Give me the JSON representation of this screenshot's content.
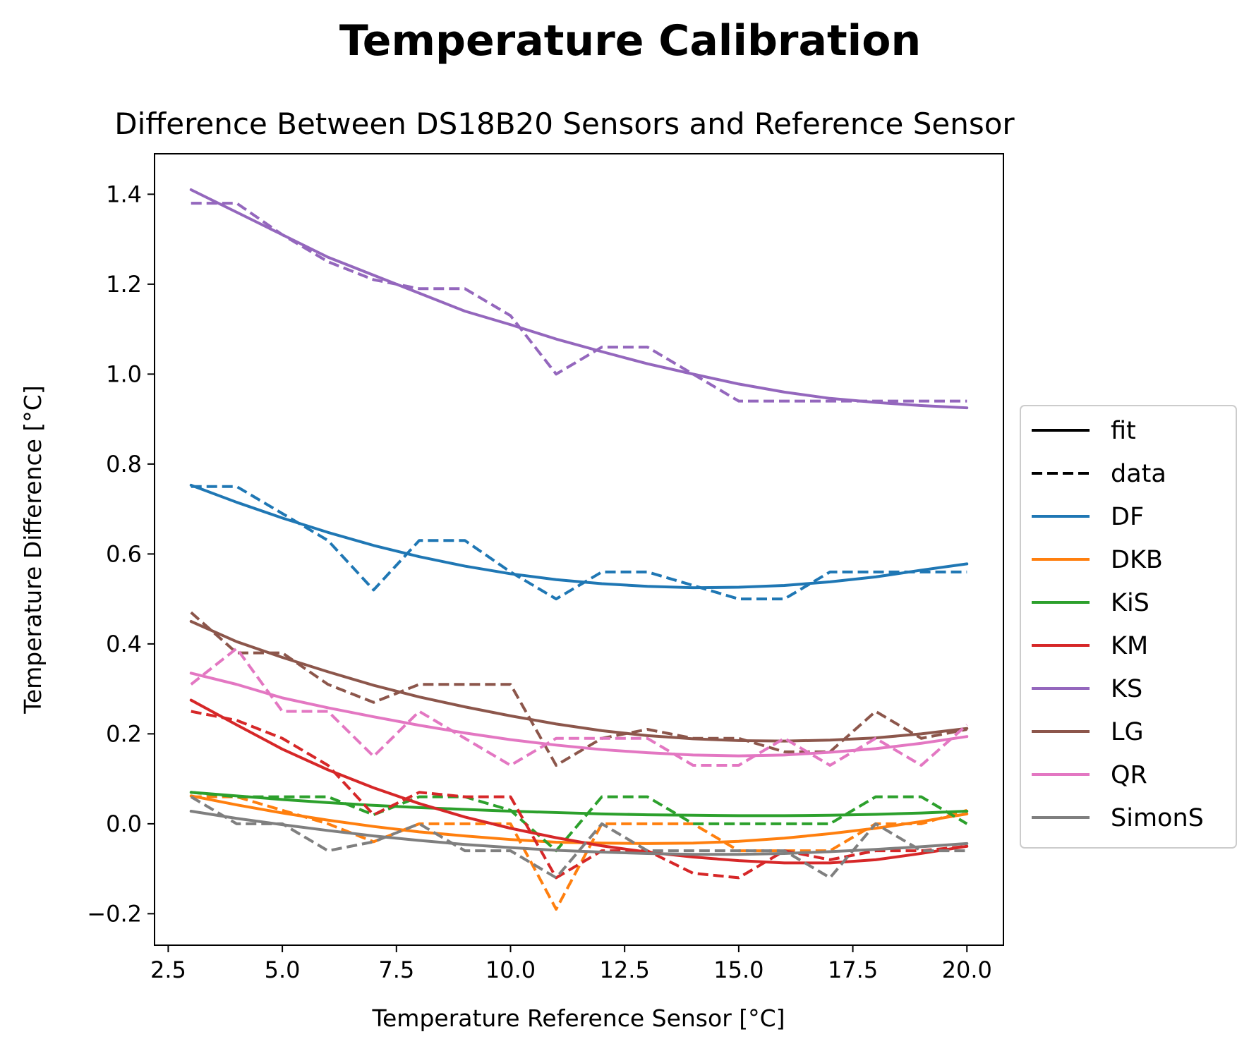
{
  "chart_data": {
    "type": "line",
    "title": "Temperature Calibration",
    "subtitle": "Difference Between DS18B20 Sensors and Reference Sensor",
    "xlabel": "Temperature Reference Sensor [°C]",
    "ylabel": "Temperature Difference [°C]",
    "xlim": [
      2.2,
      20.8
    ],
    "ylim": [
      -0.27,
      1.49
    ],
    "x_ticks": [
      "2.5",
      "5.0",
      "7.5",
      "10.0",
      "12.5",
      "15.0",
      "17.5",
      "20.0"
    ],
    "y_ticks": [
      "−0.2",
      "0.0",
      "0.2",
      "0.4",
      "0.6",
      "0.8",
      "1.0",
      "1.2",
      "1.4"
    ],
    "legend_position": "center-right outside",
    "legend_styles": [
      {
        "label": "fit",
        "color": "#000000",
        "dash": "solid"
      },
      {
        "label": "data",
        "color": "#000000",
        "dash": "dashed"
      }
    ],
    "x": [
      3,
      4,
      5,
      6,
      7,
      8,
      9,
      10,
      11,
      12,
      13,
      14,
      15,
      16,
      17,
      18,
      19,
      20
    ],
    "series": [
      {
        "name": "DF",
        "color": "#1f77b4",
        "data": [
          0.75,
          0.75,
          0.69,
          0.63,
          0.52,
          0.63,
          0.63,
          0.56,
          0.5,
          0.56,
          0.56,
          0.53,
          0.5,
          0.5,
          0.56,
          0.56,
          0.56,
          0.56
        ],
        "fit": [
          0.753,
          0.715,
          0.68,
          0.648,
          0.619,
          0.594,
          0.573,
          0.556,
          0.543,
          0.534,
          0.528,
          0.525,
          0.526,
          0.53,
          0.538,
          0.549,
          0.564,
          0.578
        ]
      },
      {
        "name": "DKB",
        "color": "#ff7f0e",
        "data": [
          0.06,
          0.06,
          0.03,
          0.0,
          -0.04,
          0.0,
          0.0,
          0.0,
          -0.19,
          0.0,
          0.0,
          0.0,
          -0.06,
          -0.06,
          -0.06,
          0.0,
          0.0,
          0.03
        ],
        "fit": [
          0.062,
          0.042,
          0.024,
          0.008,
          -0.006,
          -0.018,
          -0.027,
          -0.035,
          -0.041,
          -0.043,
          -0.044,
          -0.043,
          -0.039,
          -0.032,
          -0.022,
          -0.01,
          0.005,
          0.022
        ]
      },
      {
        "name": "KiS",
        "color": "#2ca02c",
        "data": [
          0.07,
          0.06,
          0.06,
          0.06,
          0.02,
          0.06,
          0.06,
          0.03,
          -0.06,
          0.06,
          0.06,
          0.0,
          0.0,
          0.0,
          0.0,
          0.06,
          0.06,
          0.0
        ],
        "fit": [
          0.07,
          0.062,
          0.054,
          0.047,
          0.041,
          0.036,
          0.032,
          0.028,
          0.025,
          0.022,
          0.02,
          0.019,
          0.018,
          0.018,
          0.019,
          0.021,
          0.024,
          0.028
        ]
      },
      {
        "name": "KM",
        "color": "#d62728",
        "data": [
          0.25,
          0.23,
          0.19,
          0.13,
          0.02,
          0.07,
          0.06,
          0.06,
          -0.12,
          -0.06,
          -0.06,
          -0.11,
          -0.12,
          -0.06,
          -0.08,
          -0.06,
          -0.06,
          -0.05
        ],
        "fit": [
          0.275,
          0.22,
          0.166,
          0.12,
          0.08,
          0.045,
          0.015,
          -0.01,
          -0.031,
          -0.049,
          -0.063,
          -0.074,
          -0.082,
          -0.087,
          -0.087,
          -0.08,
          -0.066,
          -0.05
        ]
      },
      {
        "name": "KS",
        "color": "#9467bd",
        "data": [
          1.38,
          1.38,
          1.31,
          1.25,
          1.21,
          1.19,
          1.19,
          1.13,
          1.0,
          1.06,
          1.06,
          1.0,
          0.94,
          0.94,
          0.94,
          0.94,
          0.94,
          0.94
        ],
        "fit": [
          1.41,
          1.36,
          1.31,
          1.26,
          1.22,
          1.18,
          1.14,
          1.11,
          1.078,
          1.05,
          1.023,
          1.0,
          0.978,
          0.96,
          0.946,
          0.937,
          0.93,
          0.925
        ]
      },
      {
        "name": "LG",
        "color": "#8c564b",
        "data": [
          0.47,
          0.38,
          0.38,
          0.31,
          0.27,
          0.31,
          0.31,
          0.31,
          0.13,
          0.19,
          0.21,
          0.19,
          0.19,
          0.16,
          0.16,
          0.25,
          0.19,
          0.21
        ],
        "fit": [
          0.45,
          0.405,
          0.37,
          0.338,
          0.308,
          0.282,
          0.26,
          0.24,
          0.222,
          0.207,
          0.196,
          0.189,
          0.185,
          0.184,
          0.186,
          0.191,
          0.2,
          0.212
        ]
      },
      {
        "name": "QR",
        "color": "#e377c2",
        "data": [
          0.31,
          0.39,
          0.25,
          0.25,
          0.15,
          0.25,
          0.19,
          0.13,
          0.19,
          0.19,
          0.19,
          0.13,
          0.13,
          0.19,
          0.13,
          0.19,
          0.13,
          0.22
        ],
        "fit": [
          0.335,
          0.31,
          0.28,
          0.258,
          0.238,
          0.219,
          0.202,
          0.187,
          0.175,
          0.165,
          0.158,
          0.153,
          0.151,
          0.153,
          0.159,
          0.167,
          0.179,
          0.194
        ]
      },
      {
        "name": "SimonS",
        "color": "#7f7f7f",
        "data": [
          0.06,
          0.0,
          0.0,
          -0.06,
          -0.04,
          0.0,
          -0.06,
          -0.06,
          -0.12,
          0.0,
          -0.06,
          -0.06,
          -0.06,
          -0.06,
          -0.12,
          0.0,
          -0.06,
          -0.06
        ],
        "fit": [
          0.028,
          0.012,
          -0.002,
          -0.015,
          -0.027,
          -0.037,
          -0.046,
          -0.053,
          -0.059,
          -0.063,
          -0.066,
          -0.068,
          -0.068,
          -0.066,
          -0.062,
          -0.057,
          -0.051,
          -0.044
        ]
      }
    ]
  }
}
